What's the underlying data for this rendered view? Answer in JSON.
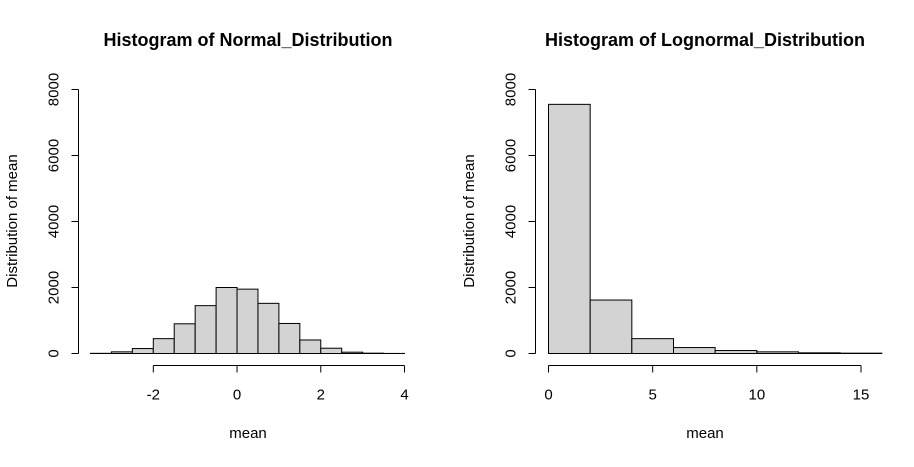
{
  "chart_data": [
    {
      "type": "bar",
      "title": "Histogram of Normal_Distribution",
      "xlabel": "mean",
      "ylabel": "Distribution of mean",
      "xlim": [
        -3.5,
        4
      ],
      "ylim": [
        0,
        8000
      ],
      "x_ticks": [
        -2,
        0,
        2,
        4
      ],
      "y_ticks": [
        0,
        2000,
        4000,
        6000,
        8000
      ],
      "bin_edges": [
        -3.5,
        -3.0,
        -2.5,
        -2.0,
        -1.5,
        -1.0,
        -0.5,
        0.0,
        0.5,
        1.0,
        1.5,
        2.0,
        2.5,
        3.0,
        3.5,
        4.0
      ],
      "values": [
        5,
        50,
        150,
        450,
        900,
        1450,
        2000,
        1950,
        1520,
        910,
        410,
        160,
        40,
        10,
        2
      ],
      "bar_fill": "#d3d3d3",
      "bar_stroke": "#000000",
      "grid": false
    },
    {
      "type": "bar",
      "title": "Histogram of Lognormal_Distribution",
      "xlabel": "mean",
      "ylabel": "Distribution of mean",
      "xlim": [
        0,
        15.6
      ],
      "ylim": [
        0,
        8000
      ],
      "x_ticks": [
        0,
        5,
        10,
        15
      ],
      "y_ticks": [
        0,
        2000,
        4000,
        6000,
        8000
      ],
      "bin_edges": [
        0,
        2,
        4,
        6,
        8,
        10,
        12,
        14,
        16
      ],
      "values": [
        7550,
        1620,
        450,
        180,
        90,
        50,
        20,
        10
      ],
      "bar_fill": "#d3d3d3",
      "bar_stroke": "#000000",
      "grid": false
    }
  ]
}
